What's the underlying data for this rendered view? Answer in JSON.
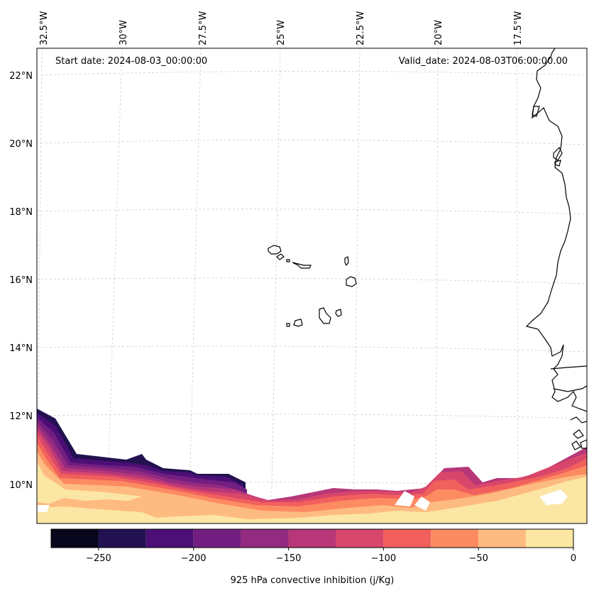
{
  "map": {
    "start_date_text": "Start date: 2024-08-03_00:00:00",
    "valid_date_text": "Valid_date: 2024-08-03T06:00:00.00",
    "lon_labels": [
      "32.5°W",
      "30°W",
      "27.5°W",
      "25°W",
      "22.5°W",
      "20°W",
      "17.5°W"
    ],
    "lat_labels": [
      "22°N",
      "20°N",
      "18°N",
      "16°N",
      "14°N",
      "12°N",
      "10°N"
    ],
    "gridlines": true
  },
  "colorbar": {
    "label": "925 hPa convective inhibition (j/Kg)",
    "ticks": [
      "−250",
      "−200",
      "−150",
      "−100",
      "−50",
      "0"
    ],
    "levels": [
      -275,
      -250,
      -225,
      -200,
      -175,
      -150,
      -125,
      -100,
      -75,
      -50,
      -25,
      0
    ],
    "colors": [
      "#07061c",
      "#221150",
      "#4b0f75",
      "#721f81",
      "#932b80",
      "#b73779",
      "#d9466b",
      "#f1605d",
      "#fd8b62",
      "#febb81",
      "#fce6a3"
    ]
  },
  "colors": {
    "coastline": "#000000",
    "gridline": "#cccccc",
    "frame": "#000000"
  }
}
